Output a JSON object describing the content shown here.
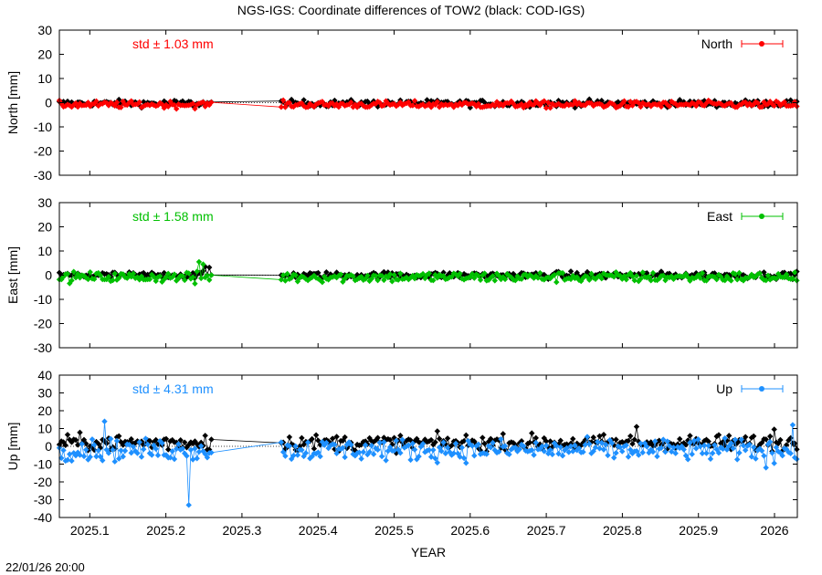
{
  "title": "NGS-IGS: Coordinate differences of TOW2 (black: COD-IGS)",
  "timestamp": "22/01/26 20:00",
  "chart_data": [
    {
      "type": "line",
      "ylabel": "North [mm]",
      "ylim": [
        -30,
        30
      ],
      "yticks": [
        -30,
        -20,
        -10,
        0,
        10,
        20,
        30
      ],
      "xlim": [
        2025.06,
        2026.03
      ],
      "grid": false,
      "legend_position": "top-right",
      "std_label": "std ± 1.03 mm",
      "series": [
        {
          "name": "North",
          "color": "#ff0000",
          "noise": 1.0,
          "offset": -0.8,
          "jumps": []
        },
        {
          "name": "",
          "color": "#000000",
          "noise": 1.0,
          "offset": -0.3,
          "jumps": []
        }
      ]
    },
    {
      "type": "line",
      "ylabel": "East [mm]",
      "ylim": [
        -30,
        30
      ],
      "yticks": [
        -30,
        -20,
        -10,
        0,
        10,
        20,
        30
      ],
      "xlim": [
        2025.06,
        2026.03
      ],
      "grid": false,
      "legend_position": "top-right",
      "std_label": "std ± 1.58 mm",
      "series": [
        {
          "name": "East",
          "color": "#00c000",
          "noise": 1.5,
          "offset": -0.8,
          "jumps": [
            [
              2025.25,
              4.5
            ],
            [
              2025.238,
              -3.5
            ],
            [
              2025.243,
              5.5
            ]
          ]
        },
        {
          "name": "",
          "color": "#000000",
          "noise": 1.0,
          "offset": 0.0,
          "jumps": [
            [
              2025.252,
              3.5
            ],
            [
              2025.258,
              3.2
            ],
            [
              2025.35,
              -3.0
            ]
          ]
        }
      ]
    },
    {
      "type": "line",
      "ylabel": "Up [mm]",
      "ylim": [
        -40,
        40
      ],
      "yticks": [
        -40,
        -30,
        -20,
        -10,
        0,
        10,
        20,
        30,
        40
      ],
      "xlim": [
        2025.06,
        2026.03
      ],
      "grid": false,
      "legend_position": "top-right",
      "std_label": "std ± 4.31 mm",
      "series": [
        {
          "name": "Up",
          "color": "#1e90ff",
          "noise": 4.3,
          "offset": -2.0,
          "jumps": [
            [
              2025.229,
              -33.0
            ],
            [
              2025.232,
              -2.0
            ],
            [
              2025.12,
              14.0
            ],
            [
              2025.99,
              -12.0
            ],
            [
              2026.025,
              12.0
            ]
          ]
        },
        {
          "name": "",
          "color": "#000000",
          "noise": 3.2,
          "offset": 2.0,
          "jumps": [
            [
              2025.252,
              6.0
            ],
            [
              2025.82,
              11.0
            ],
            [
              2026.0,
              9.5
            ]
          ]
        }
      ]
    }
  ],
  "x_axis": {
    "label": "YEAR",
    "ticks": [
      {
        "value": 2025.1,
        "label": "2025.1"
      },
      {
        "value": 2025.2,
        "label": "2025.2"
      },
      {
        "value": 2025.3,
        "label": "2025.3"
      },
      {
        "value": 2025.4,
        "label": "2025.4"
      },
      {
        "value": 2025.5,
        "label": "2025.5"
      },
      {
        "value": 2025.6,
        "label": "2025.6"
      },
      {
        "value": 2025.7,
        "label": "2025.7"
      },
      {
        "value": 2025.8,
        "label": "2025.8"
      },
      {
        "value": 2025.9,
        "label": "2025.9"
      },
      {
        "value": 2026.0,
        "label": "2026"
      }
    ],
    "data_gap": [
      2025.26,
      2025.35
    ],
    "data_start": 2025.06,
    "data_end": 2026.03,
    "sample_step": 0.0027
  }
}
